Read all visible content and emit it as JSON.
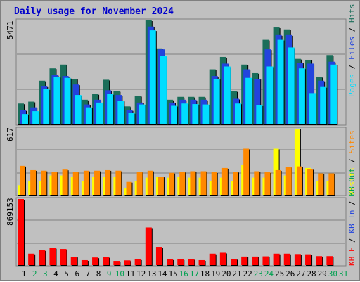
{
  "title": "Daily usage for November 2024",
  "colors": {
    "title": "#0000cc",
    "hits": "#1b6e5a",
    "files": "#2244dd",
    "pages": "#00ddff",
    "visits": "#ffff00",
    "sites": "#ff8800",
    "kb": "#ff0000",
    "weekday_label": "#000000",
    "weekend_label": "#00a050",
    "panel_bg": "#c0c0c0"
  },
  "chart_data": [
    {
      "type": "bar",
      "title": "",
      "ymax_label": "5471",
      "ylim": [
        0,
        5471
      ],
      "legend": [
        {
          "label": "Pages",
          "color_key": "pages"
        },
        {
          "label": "Files",
          "color_key": "files"
        },
        {
          "label": "Hits",
          "color_key": "hits"
        }
      ],
      "legend_separator": " / ",
      "categories": [
        "1",
        "2",
        "3",
        "4",
        "5",
        "6",
        "7",
        "8",
        "9",
        "10",
        "11",
        "12",
        "13",
        "14",
        "15",
        "16",
        "17",
        "18",
        "19",
        "20",
        "21",
        "22",
        "23",
        "24",
        "25",
        "26",
        "27",
        "28",
        "29",
        "30",
        "31"
      ],
      "series": [
        {
          "name": "Hits",
          "color_key": "hits",
          "values": [
            1100,
            1200,
            2300,
            2950,
            3150,
            2400,
            1300,
            1600,
            2350,
            1750,
            950,
            1500,
            5471,
            4000,
            1300,
            1450,
            1450,
            1450,
            2900,
            3550,
            1750,
            3150,
            2700,
            4450,
            5100,
            5000,
            3450,
            3400,
            2500,
            3650,
            0
          ]
        },
        {
          "name": "Files",
          "color_key": "files",
          "values": [
            750,
            900,
            2000,
            2600,
            2550,
            2100,
            1050,
            1300,
            1800,
            1550,
            750,
            1150,
            5150,
            3950,
            1150,
            1300,
            1300,
            1300,
            2550,
            3200,
            1350,
            2900,
            2400,
            3950,
            4700,
            4700,
            3250,
            3200,
            2300,
            3300,
            0
          ]
        },
        {
          "name": "Pages",
          "color_key": "pages",
          "values": [
            550,
            700,
            1850,
            2500,
            2450,
            1550,
            900,
            1150,
            1600,
            1250,
            600,
            1050,
            4950,
            3600,
            980,
            1100,
            1070,
            1050,
            2400,
            3050,
            1100,
            2450,
            1000,
            3050,
            4450,
            4050,
            2950,
            1650,
            1970,
            3150,
            0
          ]
        }
      ]
    },
    {
      "type": "bar",
      "title": "",
      "ymax_label": "617",
      "ylim": [
        0,
        617
      ],
      "legend": [
        {
          "label": "Visits",
          "color_key": "visits"
        },
        {
          "label": "Sites",
          "color_key": "sites"
        }
      ],
      "legend_separator": " / ",
      "categories": [
        "1",
        "2",
        "3",
        "4",
        "5",
        "6",
        "7",
        "8",
        "9",
        "10",
        "11",
        "12",
        "13",
        "14",
        "15",
        "16",
        "17",
        "18",
        "19",
        "20",
        "21",
        "22",
        "23",
        "24",
        "25",
        "26",
        "27",
        "28",
        "29",
        "30",
        "31"
      ],
      "series": [
        {
          "name": "Visits",
          "color_key": "visits",
          "values": [
            90,
            130,
            130,
            180,
            180,
            170,
            130,
            170,
            170,
            170,
            60,
            130,
            160,
            170,
            160,
            170,
            160,
            160,
            130,
            160,
            130,
            280,
            160,
            160,
            430,
            180,
            617,
            250,
            130,
            130,
            0
          ]
        },
        {
          "name": "Sites",
          "color_key": "sites",
          "values": [
            270,
            230,
            225,
            215,
            235,
            215,
            225,
            225,
            230,
            225,
            120,
            215,
            225,
            170,
            205,
            215,
            220,
            220,
            210,
            250,
            215,
            430,
            220,
            210,
            230,
            260,
            265,
            240,
            200,
            200,
            0
          ]
        }
      ]
    },
    {
      "type": "bar",
      "title": "",
      "ymax_label": "869153",
      "ylim": [
        0,
        869153
      ],
      "legend": [
        {
          "label": "KB F",
          "color_key": "kb"
        },
        {
          "label": "KB In",
          "color_key": "files"
        },
        {
          "label": "KB Out",
          "color_key": "weekend_label"
        }
      ],
      "legend_separator": " / ",
      "categories": [
        "1",
        "2",
        "3",
        "4",
        "5",
        "6",
        "7",
        "8",
        "9",
        "10",
        "11",
        "12",
        "13",
        "14",
        "15",
        "16",
        "17",
        "18",
        "19",
        "20",
        "21",
        "22",
        "23",
        "24",
        "25",
        "26",
        "27",
        "28",
        "29",
        "30",
        "31"
      ],
      "series": [
        {
          "name": "KB F",
          "color_key": "kb",
          "values": [
            869153,
            150000,
            195000,
            225000,
            212000,
            110000,
            65000,
            100000,
            105000,
            55000,
            62000,
            75000,
            495000,
            240000,
            75000,
            75000,
            78000,
            65000,
            150000,
            162000,
            80000,
            112000,
            112000,
            115000,
            150000,
            150000,
            145000,
            142000,
            118000,
            118000,
            0
          ]
        }
      ]
    }
  ],
  "weekend_days": [
    "2",
    "3",
    "9",
    "10",
    "16",
    "17",
    "23",
    "24",
    "30",
    "31"
  ]
}
